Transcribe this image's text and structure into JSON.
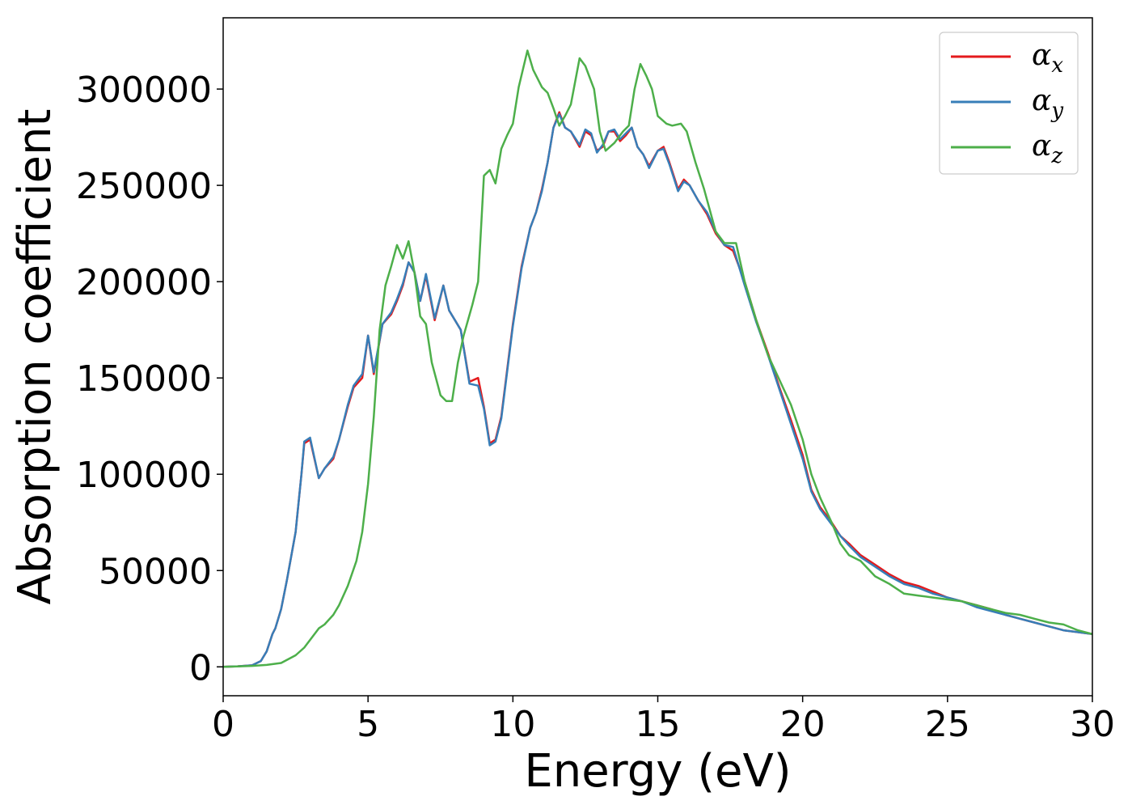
{
  "chart_data": {
    "type": "line",
    "title": "",
    "xlabel": "Energy (eV)",
    "ylabel": "Absorption coefficient",
    "xlim": [
      0,
      30
    ],
    "ylim": [
      -15000,
      337000
    ],
    "xticks": [
      0,
      5,
      10,
      15,
      20,
      25,
      30
    ],
    "xtick_labels": [
      "0",
      "5",
      "10",
      "15",
      "20",
      "25",
      "30"
    ],
    "yticks": [
      0,
      50000,
      100000,
      150000,
      200000,
      250000,
      300000
    ],
    "ytick_labels": [
      "0",
      "50000",
      "100000",
      "150000",
      "200000",
      "250000",
      "300000"
    ],
    "grid": false,
    "legend_position": "top-right",
    "series": [
      {
        "name": "α",
        "subscript": "x",
        "color": "#e41a1c",
        "x": [
          0,
          0.5,
          1.0,
          1.3,
          1.5,
          1.7,
          1.8,
          2.0,
          2.2,
          2.5,
          2.7,
          2.8,
          3.0,
          3.3,
          3.5,
          3.8,
          4.0,
          4.3,
          4.5,
          4.8,
          5.0,
          5.2,
          5.5,
          5.8,
          6.0,
          6.2,
          6.4,
          6.6,
          6.8,
          7.0,
          7.3,
          7.6,
          7.8,
          8.0,
          8.2,
          8.5,
          8.8,
          9.0,
          9.2,
          9.4,
          9.6,
          10.0,
          10.3,
          10.6,
          10.8,
          11.0,
          11.2,
          11.4,
          11.6,
          11.8,
          12.0,
          12.3,
          12.5,
          12.7,
          12.9,
          13.1,
          13.3,
          13.5,
          13.7,
          13.9,
          14.1,
          14.3,
          14.5,
          14.7,
          15.0,
          15.2,
          15.4,
          15.7,
          15.9,
          16.1,
          16.4,
          16.7,
          17.0,
          17.3,
          17.6,
          18.0,
          18.4,
          18.8,
          19.2,
          19.6,
          20.0,
          20.3,
          20.6,
          21.0,
          21.3,
          21.6,
          22.0,
          22.5,
          23.0,
          23.5,
          24.0,
          24.5,
          25.0,
          25.5,
          26.0,
          26.5,
          27.0,
          27.5,
          28.0,
          28.5,
          29.0,
          29.5,
          30.0
        ],
        "y": [
          0,
          300,
          800,
          3000,
          8000,
          17000,
          20000,
          30000,
          45000,
          70000,
          100000,
          116000,
          118000,
          98000,
          103000,
          108000,
          118000,
          135000,
          145000,
          150000,
          172000,
          152000,
          178000,
          183000,
          190000,
          198000,
          210000,
          205000,
          190000,
          203000,
          180000,
          198000,
          185000,
          180000,
          175000,
          148000,
          150000,
          135000,
          116000,
          118000,
          130000,
          178000,
          208000,
          228000,
          236000,
          248000,
          262000,
          280000,
          288000,
          280000,
          278000,
          270000,
          278000,
          276000,
          268000,
          270000,
          278000,
          278000,
          273000,
          276000,
          280000,
          270000,
          266000,
          260000,
          268000,
          270000,
          262000,
          248000,
          253000,
          250000,
          242000,
          235000,
          225000,
          219000,
          216000,
          200000,
          180000,
          163000,
          145000,
          128000,
          110000,
          92000,
          83000,
          75000,
          68000,
          64000,
          58000,
          53000,
          48000,
          44000,
          42000,
          39000,
          36000,
          34000,
          32000,
          30000,
          27000,
          25000,
          23000,
          21000,
          19000,
          18000,
          17000
        ]
      },
      {
        "name": "α",
        "subscript": "y",
        "color": "#377eb8",
        "x": [
          0,
          0.5,
          1.0,
          1.3,
          1.5,
          1.7,
          1.8,
          2.0,
          2.2,
          2.5,
          2.7,
          2.8,
          3.0,
          3.3,
          3.5,
          3.8,
          4.0,
          4.3,
          4.5,
          4.8,
          5.0,
          5.2,
          5.5,
          5.8,
          6.0,
          6.2,
          6.4,
          6.6,
          6.8,
          7.0,
          7.3,
          7.6,
          7.8,
          8.0,
          8.2,
          8.5,
          8.8,
          9.0,
          9.2,
          9.4,
          9.6,
          10.0,
          10.3,
          10.6,
          10.8,
          11.0,
          11.2,
          11.4,
          11.6,
          11.8,
          12.0,
          12.3,
          12.5,
          12.7,
          12.9,
          13.1,
          13.3,
          13.5,
          13.7,
          13.9,
          14.1,
          14.3,
          14.5,
          14.7,
          15.0,
          15.2,
          15.4,
          15.7,
          15.9,
          16.1,
          16.4,
          16.7,
          17.0,
          17.3,
          17.6,
          18.0,
          18.4,
          18.8,
          19.2,
          19.6,
          20.0,
          20.3,
          20.6,
          21.0,
          21.3,
          21.6,
          22.0,
          22.5,
          23.0,
          23.5,
          24.0,
          24.5,
          25.0,
          25.5,
          26.0,
          26.5,
          27.0,
          27.5,
          28.0,
          28.5,
          29.0,
          29.5,
          30.0
        ],
        "y": [
          0,
          300,
          800,
          3000,
          8000,
          17000,
          20000,
          30000,
          45000,
          70000,
          100000,
          117000,
          119000,
          98000,
          103000,
          109000,
          118000,
          136000,
          146000,
          152000,
          172000,
          153000,
          178000,
          184000,
          191000,
          199000,
          210000,
          205000,
          190000,
          204000,
          181000,
          198000,
          185000,
          180000,
          175000,
          147000,
          146000,
          134000,
          115000,
          117000,
          129000,
          177000,
          207000,
          228000,
          236000,
          247000,
          262000,
          280000,
          287000,
          280000,
          278000,
          271000,
          279000,
          277000,
          267000,
          271000,
          278000,
          279000,
          274000,
          277000,
          280000,
          270000,
          266000,
          259000,
          268000,
          269000,
          261000,
          247000,
          252000,
          250000,
          242000,
          236000,
          226000,
          219000,
          218000,
          198000,
          179000,
          162000,
          144000,
          126000,
          108000,
          91000,
          82000,
          74000,
          68000,
          63000,
          57000,
          52000,
          47000,
          43000,
          41000,
          38000,
          36000,
          34000,
          31000,
          29000,
          27000,
          25000,
          23000,
          21000,
          19000,
          18000,
          17000
        ]
      },
      {
        "name": "α",
        "subscript": "z",
        "color": "#4daf4a",
        "x": [
          0,
          0.5,
          1.0,
          1.5,
          2.0,
          2.5,
          2.8,
          3.0,
          3.3,
          3.5,
          3.8,
          4.0,
          4.3,
          4.6,
          4.8,
          5.0,
          5.2,
          5.4,
          5.6,
          5.8,
          6.0,
          6.2,
          6.4,
          6.6,
          6.8,
          7.0,
          7.2,
          7.5,
          7.7,
          7.9,
          8.1,
          8.3,
          8.6,
          8.8,
          9.0,
          9.2,
          9.4,
          9.6,
          9.8,
          10.0,
          10.2,
          10.5,
          10.7,
          11.0,
          11.2,
          11.4,
          11.6,
          11.8,
          12.0,
          12.3,
          12.5,
          12.8,
          13.0,
          13.2,
          13.5,
          13.8,
          14.0,
          14.2,
          14.4,
          14.6,
          14.8,
          15.0,
          15.3,
          15.5,
          15.8,
          16.0,
          16.3,
          16.6,
          17.0,
          17.3,
          17.7,
          18.0,
          18.4,
          18.8,
          19.2,
          19.6,
          20.0,
          20.3,
          20.6,
          21.0,
          21.3,
          21.6,
          22.0,
          22.5,
          23.0,
          23.5,
          24.0,
          24.5,
          25.0,
          25.5,
          26.0,
          26.5,
          27.0,
          27.5,
          28.0,
          28.5,
          29.0,
          29.5,
          30.0
        ],
        "y": [
          0,
          200,
          500,
          1000,
          2000,
          6000,
          10000,
          14000,
          20000,
          22000,
          27000,
          32000,
          42000,
          55000,
          70000,
          95000,
          130000,
          175000,
          198000,
          208000,
          219000,
          212000,
          221000,
          205000,
          182000,
          178000,
          158000,
          141000,
          138000,
          138000,
          158000,
          172000,
          188000,
          200000,
          255000,
          258000,
          251000,
          269000,
          276000,
          282000,
          301000,
          320000,
          310000,
          301000,
          298000,
          290000,
          281000,
          286000,
          292000,
          316000,
          312000,
          300000,
          278000,
          268000,
          272000,
          278000,
          281000,
          300000,
          313000,
          307000,
          300000,
          286000,
          282000,
          281000,
          282000,
          278000,
          262000,
          248000,
          226000,
          220000,
          220000,
          200000,
          180000,
          162000,
          149000,
          136000,
          118000,
          100000,
          88000,
          75000,
          64000,
          58000,
          55000,
          47000,
          43000,
          38000,
          37000,
          36000,
          35000,
          34000,
          32000,
          30000,
          28000,
          27000,
          25000,
          23000,
          22000,
          19000,
          17000
        ]
      }
    ]
  }
}
